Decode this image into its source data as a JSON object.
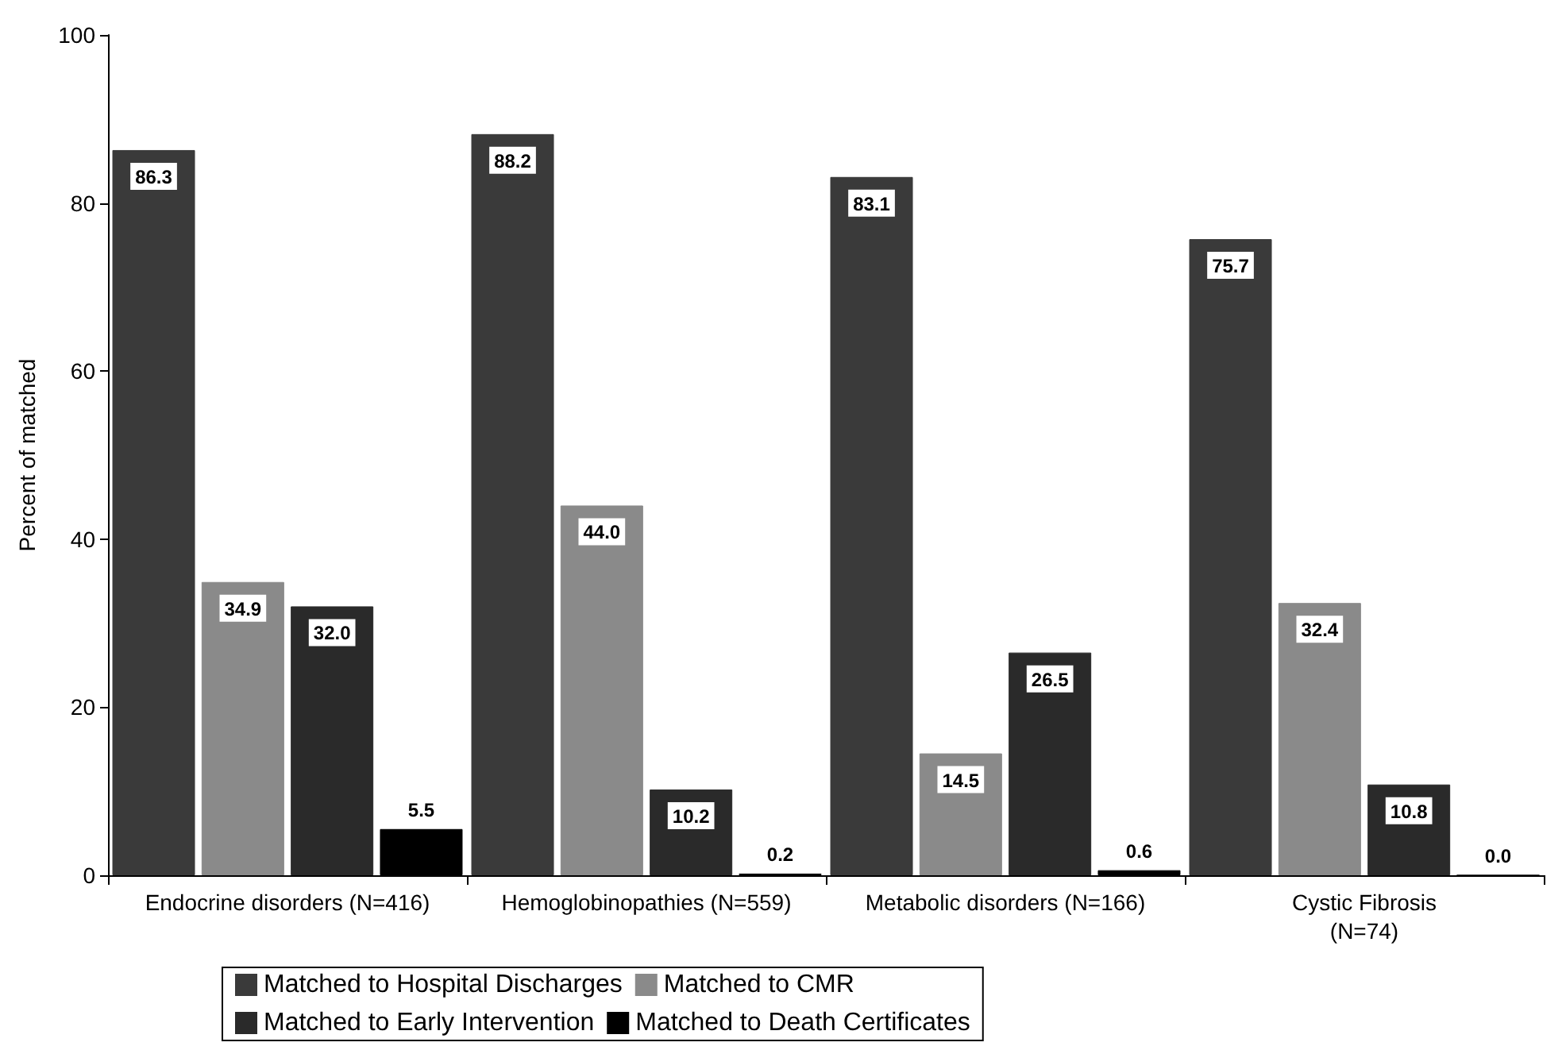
{
  "chart_data": {
    "type": "bar",
    "ylabel": "Percent of matched",
    "categories": [
      "Endocrine disorders (N=416)",
      "Hemoglobinopathies (N=559)",
      "Metabolic disorders (N=166)",
      "Cystic Fibrosis\n(N=74)"
    ],
    "series": [
      {
        "name": "Matched to Hospital Discharges",
        "color": "#3a3a3a",
        "values": [
          86.3,
          88.2,
          83.1,
          75.7
        ],
        "value_labels": [
          "86.3",
          "88.2",
          "83.1",
          "75.7"
        ]
      },
      {
        "name": "Matched to CMR",
        "color": "#8a8a8a",
        "values": [
          34.9,
          44.0,
          14.5,
          32.4
        ],
        "value_labels": [
          "34.9",
          "44.0",
          "14.5",
          "32.4"
        ]
      },
      {
        "name": "Matched to Early Intervention",
        "color": "#2a2a2a",
        "values": [
          32.0,
          10.2,
          26.5,
          10.8
        ],
        "value_labels": [
          "32.0",
          "10.2",
          "26.5",
          "10.8"
        ]
      },
      {
        "name": "Matched to Death Certificates",
        "color": "#000000",
        "values": [
          5.5,
          0.2,
          0.6,
          0.0
        ],
        "value_labels": [
          "5.5",
          "0.2",
          "0.6",
          "0.0"
        ]
      }
    ],
    "ylim": [
      0,
      100
    ],
    "yticks": [
      0,
      20,
      40,
      60,
      80,
      100
    ],
    "grid": false,
    "legend": "bottom"
  }
}
